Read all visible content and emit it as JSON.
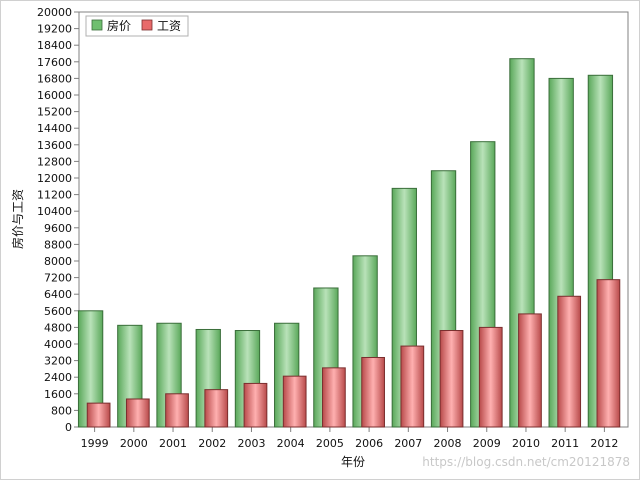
{
  "chart_data": {
    "type": "bar",
    "xlabel": "年份",
    "ylabel": "房价与工资",
    "categories": [
      "1999",
      "2000",
      "2001",
      "2002",
      "2003",
      "2004",
      "2005",
      "2006",
      "2007",
      "2008",
      "2009",
      "2010",
      "2011",
      "2012"
    ],
    "series": [
      {
        "name": "房价",
        "color": "#6fbf6f",
        "values": [
          5600,
          4900,
          5000,
          4700,
          4650,
          5000,
          6700,
          8250,
          11500,
          12350,
          13750,
          17750,
          16800,
          16950
        ]
      },
      {
        "name": "工资",
        "color": "#e86a6a",
        "values": [
          1150,
          1350,
          1600,
          1800,
          2100,
          2450,
          2850,
          3350,
          3900,
          4650,
          4800,
          5450,
          6300,
          7100
        ]
      }
    ],
    "ylim": [
      0,
      20000
    ],
    "yticks": [
      "0",
      "800",
      "1600",
      "2400",
      "3200",
      "4000",
      "4800",
      "5600",
      "6400",
      "7200",
      "8000",
      "8800",
      "9600",
      "10400",
      "11200",
      "12000",
      "12800",
      "13600",
      "14400",
      "15200",
      "16000",
      "16800",
      "17600",
      "18400",
      "19200",
      "20000"
    ],
    "legend_position": "top-left",
    "grid": false
  },
  "watermark": "https://blog.csdn.net/cm20121878"
}
